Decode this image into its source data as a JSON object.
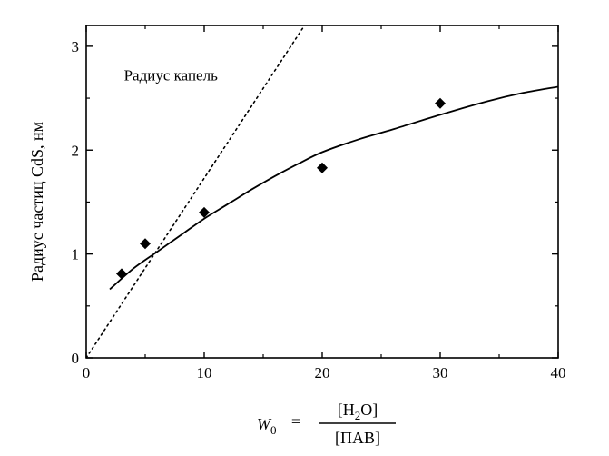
{
  "chart_data": {
    "type": "scatter",
    "xlim": [
      0,
      40
    ],
    "ylim": [
      0,
      3.2
    ],
    "x_ticks": [
      0,
      10,
      20,
      30,
      40
    ],
    "y_ticks": [
      0,
      1,
      2,
      3
    ],
    "x_tick_labels": [
      "0",
      "10",
      "20",
      "30",
      "40"
    ],
    "y_tick_labels": [
      "0",
      "1",
      "2",
      "3"
    ],
    "ylabel": "Радиус частиц CdS, нм",
    "xlabel": {
      "variable": "W",
      "subscript": "0",
      "equals": "=",
      "numerator_left": "[H",
      "numerator_sub": "2",
      "numerator_right": "O]",
      "denominator": "[ПАВ]"
    },
    "grid": false,
    "series": [
      {
        "kind": "points",
        "marker": "diamond",
        "x": [
          3,
          5,
          10,
          20,
          30
        ],
        "y": [
          0.81,
          1.1,
          1.4,
          1.83,
          2.45
        ]
      },
      {
        "kind": "fit-line",
        "style": "solid",
        "x": [
          2,
          4,
          6,
          8,
          10,
          12,
          14,
          16,
          18,
          20,
          23,
          26,
          30,
          34,
          37,
          40
        ],
        "y": [
          0.66,
          0.86,
          1.02,
          1.18,
          1.34,
          1.48,
          1.62,
          1.75,
          1.87,
          1.98,
          2.1,
          2.2,
          2.34,
          2.47,
          2.55,
          2.61
        ]
      },
      {
        "name": "Радиус капель",
        "kind": "droplet-radius-line",
        "style": "dotted",
        "x": [
          0,
          18.5
        ],
        "y": [
          0,
          3.2
        ]
      }
    ],
    "annotations": [
      {
        "text": "Радиус капель",
        "x": 3.2,
        "y": 2.67
      }
    ]
  }
}
